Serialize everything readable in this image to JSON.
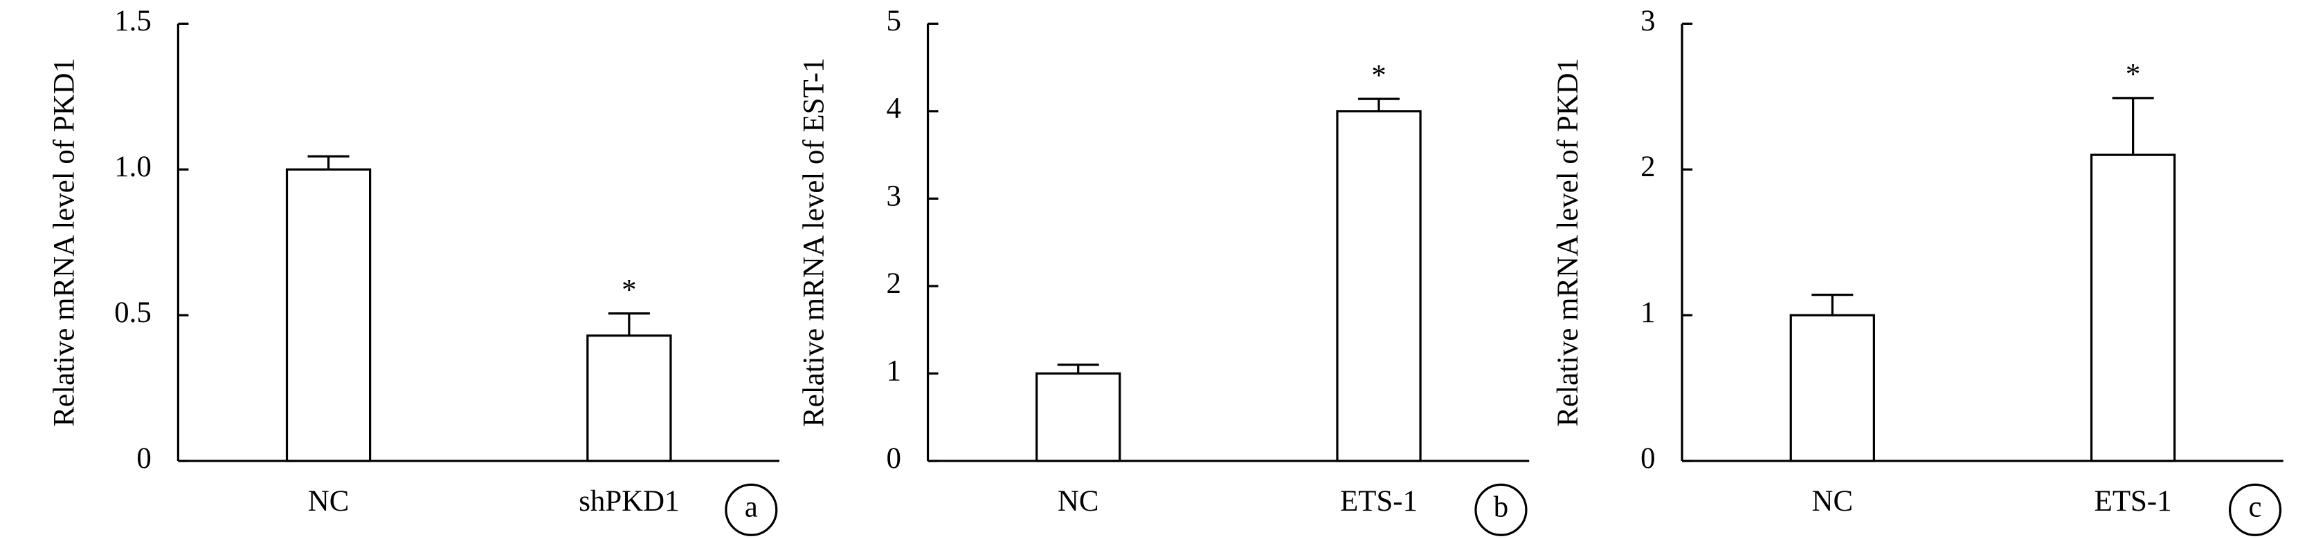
{
  "chart_data": [
    {
      "type": "bar",
      "panel": "a",
      "ylabel": "Relative mRNA level of PKD1",
      "categories": [
        "NC",
        "shPKD1"
      ],
      "values": [
        1.0,
        0.43
      ],
      "errors": [
        0.045,
        0.076
      ],
      "annotations": [
        null,
        "*"
      ],
      "ylim": [
        0,
        1.5
      ],
      "yticks": [
        0,
        0.5,
        {
          "value": 1,
          "label": "1.0"
        },
        1.5
      ]
    },
    {
      "type": "bar",
      "panel": "b",
      "ylabel": "Relative mRNA level of EST-1",
      "categories": [
        "NC",
        "ETS-1"
      ],
      "values": [
        1.0,
        4.0
      ],
      "errors": [
        0.1,
        0.14
      ],
      "annotations": [
        null,
        "*"
      ],
      "ylim": [
        0,
        5
      ],
      "yticks": [
        0,
        1,
        2,
        3,
        4,
        5
      ]
    },
    {
      "type": "bar",
      "panel": "c",
      "ylabel": "Relative mRNA level of PKD1",
      "categories": [
        "NC",
        "ETS-1"
      ],
      "values": [
        1.0,
        2.1
      ],
      "errors": [
        0.14,
        0.39
      ],
      "annotations": [
        null,
        "*"
      ],
      "ylim": [
        0,
        3
      ],
      "yticks": [
        0,
        1,
        2,
        3
      ]
    }
  ]
}
